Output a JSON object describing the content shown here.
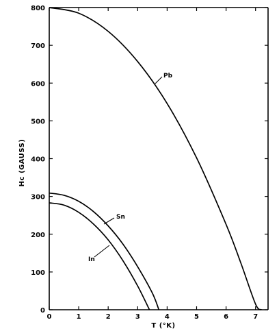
{
  "chart_data": {
    "type": "line",
    "xlabel": "T (°K)",
    "ylabel": "Hc (GAUSS)",
    "xlim": [
      0,
      7.5
    ],
    "ylim": [
      0,
      800
    ],
    "x_ticks": [
      0,
      1,
      2,
      3,
      4,
      5,
      6,
      7
    ],
    "y_ticks": [
      0,
      100,
      200,
      300,
      400,
      500,
      600,
      700,
      800
    ],
    "grid": false,
    "legend": "none",
    "series": [
      {
        "name": "Pb",
        "x": [
          0,
          1,
          2,
          3,
          4,
          5,
          6,
          6.5,
          7,
          7.2
        ],
        "y": [
          800,
          785,
          737,
          657,
          546,
          402,
          226,
          124,
          15,
          0
        ]
      },
      {
        "name": "Sn",
        "x": [
          0,
          0.5,
          1,
          1.5,
          2,
          2.5,
          3,
          3.5,
          3.72
        ],
        "y": [
          309,
          303,
          287,
          260,
          222,
          174,
          114,
          44,
          0
        ]
      },
      {
        "name": "In",
        "x": [
          0,
          0.5,
          1,
          1.5,
          2,
          2.5,
          3,
          3.4
        ],
        "y": [
          283,
          277,
          258,
          227,
          185,
          130,
          63,
          0
        ]
      }
    ],
    "annotations": [
      {
        "text": "Pb",
        "series": "Pb"
      },
      {
        "text": "Sn",
        "series": "Sn"
      },
      {
        "text": "In",
        "series": "In"
      }
    ]
  }
}
